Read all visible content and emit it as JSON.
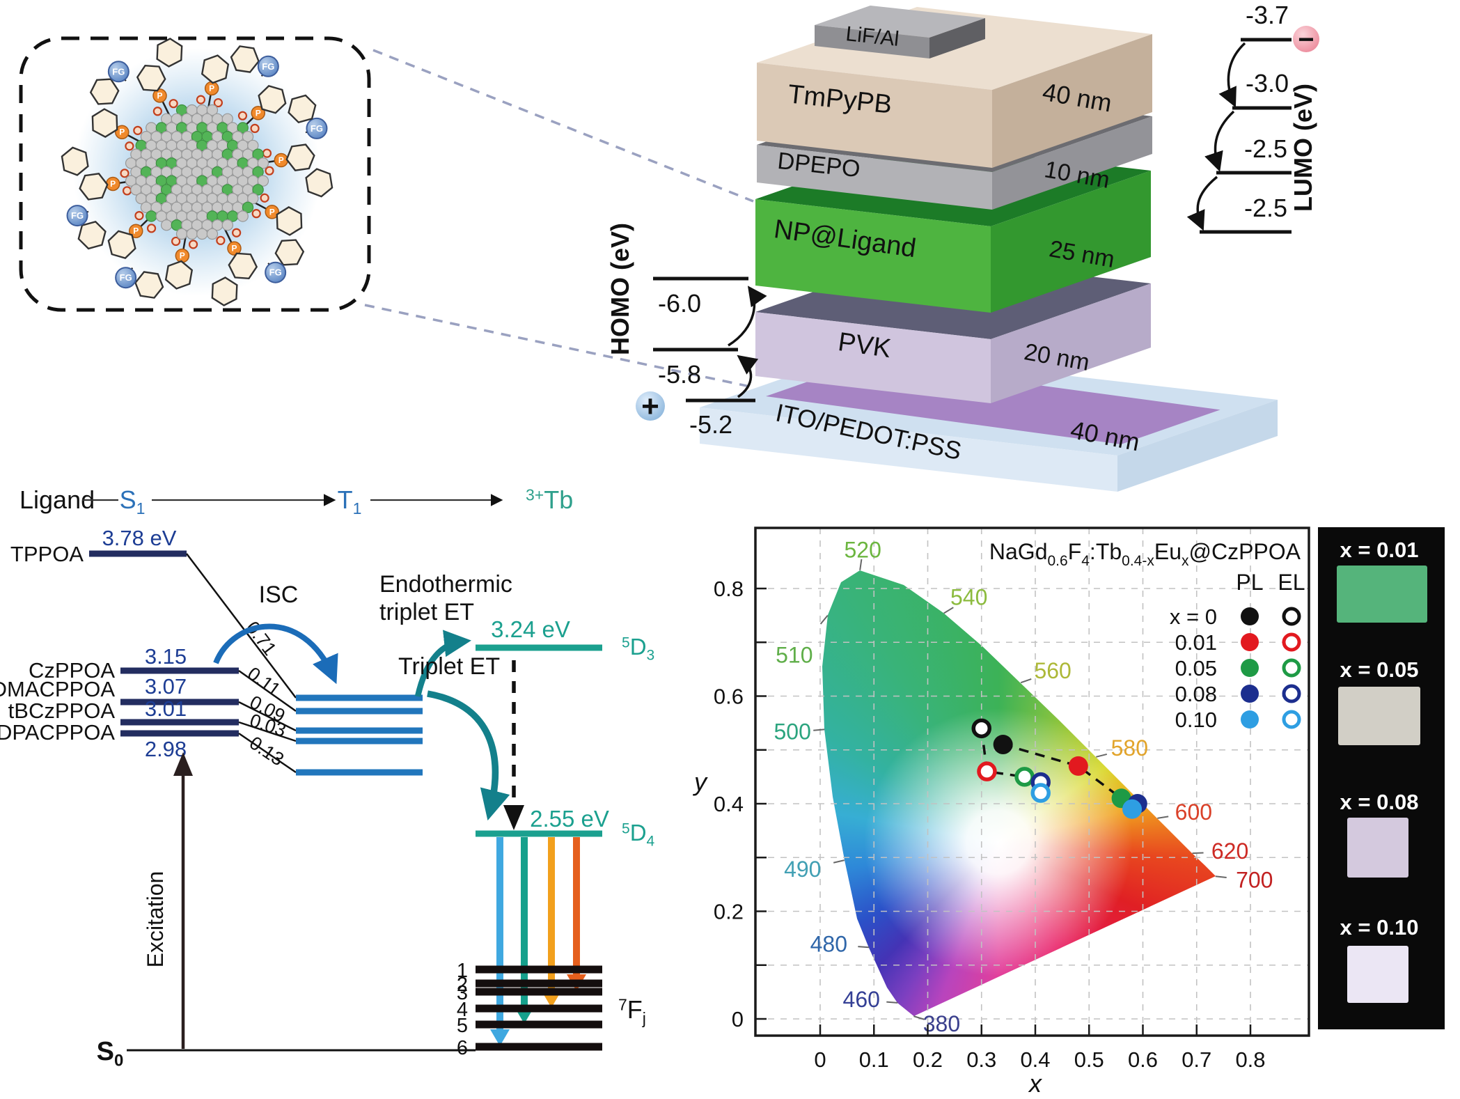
{
  "nanoparticle": {
    "functional_group_label": "FG"
  },
  "device": {
    "layers": [
      {
        "label": "LiF/Al",
        "thickness": ""
      },
      {
        "label": "TmPyPB",
        "thickness": "40 nm"
      },
      {
        "label": "DPEPO",
        "thickness": "10 nm"
      },
      {
        "label": "NP@Ligand",
        "thickness": "25 nm"
      },
      {
        "label": "PVK",
        "thickness": "20 nm"
      },
      {
        "label": "ITO/PEDOT:PSS",
        "thickness": "40 nm"
      }
    ],
    "homo": {
      "axis_label": "HOMO (eV)",
      "levels": [
        "-6.0",
        "-5.8",
        "-5.2"
      ],
      "carrier_symbol": "+"
    },
    "lumo": {
      "axis_label": "LUMO (eV)",
      "levels": [
        "-3.7",
        "-3.0",
        "-2.5",
        "-2.5"
      ],
      "carrier_symbol": "−"
    }
  },
  "energy_diagram": {
    "header": {
      "ligand": "Ligand",
      "s1": {
        "base": "S",
        "sub": "1"
      },
      "t1": {
        "base": "T",
        "sub": "1"
      },
      "acceptor": {
        "base": "Tb",
        "sup": "3+"
      }
    },
    "s1_levels": [
      {
        "name": "TPPOA",
        "energy": "3.78 eV"
      },
      {
        "name": "CzPPOA",
        "energy": "3.15"
      },
      {
        "name": "DMACPPOA",
        "energy": "3.07"
      },
      {
        "name": "tBCzPPOA",
        "energy": "3.01"
      },
      {
        "name": "DPACPPOA",
        "energy": "2.98"
      }
    ],
    "isc_yields": [
      "0.71",
      "0.11",
      "0.09",
      "0.03",
      "0.13"
    ],
    "labels": {
      "isc": "ISC",
      "endothermic_line1": "Endothermic",
      "endothermic_line2": "triplet ET",
      "triplet_et": "Triplet ET",
      "excitation": "Excitation"
    },
    "tb_levels": {
      "d3": {
        "energy": "3.24 eV",
        "term": {
          "sup": "5",
          "base": "D",
          "sub": "3"
        }
      },
      "d4": {
        "energy": "2.55 eV",
        "term": {
          "sup": "5",
          "base": "D",
          "sub": "4"
        }
      },
      "ground_term": {
        "sup": "7",
        "base": "F",
        "sub": "j"
      },
      "f_indices": [
        "1",
        "2",
        "3",
        "4",
        "5",
        "6"
      ],
      "s0": {
        "base": "S",
        "sub": "0"
      }
    }
  },
  "chart_data": {
    "type": "scatter",
    "title": "NaGd0.6F4:Tb0.4-xEux@CzPPOA",
    "title_segments": [
      {
        "t": "NaGd"
      },
      {
        "t": "0.6",
        "sub": true
      },
      {
        "t": "F"
      },
      {
        "t": "4",
        "sub": true
      },
      {
        "t": ":Tb"
      },
      {
        "t": "0.4-x",
        "sub": true
      },
      {
        "t": "Eu"
      },
      {
        "t": "x",
        "sub": true
      },
      {
        "t": "@CzPPOA"
      }
    ],
    "xlabel": "x",
    "ylabel": "y",
    "xlim": [
      0,
      0.8
    ],
    "ylim": [
      0,
      0.8
    ],
    "grid": true,
    "background": "CIE 1931 chromaticity gamut",
    "xticks": [
      "0",
      "0.1",
      "0.2",
      "0.3",
      "0.4",
      "0.5",
      "0.6",
      "0.7",
      "0.8"
    ],
    "yticks": [
      "0",
      "0.2",
      "0.4",
      "0.6",
      "0.8"
    ],
    "wavelength_labels": [
      {
        "nm": "380",
        "color": "#3a3f8d"
      },
      {
        "nm": "460",
        "color": "#343f95"
      },
      {
        "nm": "480",
        "color": "#2f66a9"
      },
      {
        "nm": "490",
        "color": "#42a0b4"
      },
      {
        "nm": "500",
        "color": "#2ba47e"
      },
      {
        "nm": "510",
        "color": "#5fae49"
      },
      {
        "nm": "520",
        "color": "#6cb640"
      },
      {
        "nm": "540",
        "color": "#8cbb3e"
      },
      {
        "nm": "560",
        "color": "#adb838"
      },
      {
        "nm": "580",
        "color": "#e2a42b"
      },
      {
        "nm": "600",
        "color": "#da4129"
      },
      {
        "nm": "620",
        "color": "#cd2a24"
      },
      {
        "nm": "700",
        "color": "#c22121"
      }
    ],
    "legend": {
      "series_headers": [
        "PL",
        "EL"
      ],
      "rows": [
        {
          "label": "x = 0",
          "color": "#111111"
        },
        {
          "label": "0.01",
          "color": "#e2191f"
        },
        {
          "label": "0.05",
          "color": "#1e9a45"
        },
        {
          "label": "0.08",
          "color": "#1c2e8e"
        },
        {
          "label": "0.10",
          "color": "#2e9ee2"
        }
      ]
    },
    "series": [
      {
        "name": "PL",
        "marker": "filled",
        "points": [
          [
            0.34,
            0.51
          ],
          [
            0.48,
            0.47
          ],
          [
            0.56,
            0.41
          ],
          [
            0.59,
            0.4
          ],
          [
            0.58,
            0.39
          ]
        ]
      },
      {
        "name": "EL",
        "marker": "open",
        "points": [
          [
            0.3,
            0.54
          ],
          [
            0.31,
            0.46
          ],
          [
            0.38,
            0.45
          ],
          [
            0.41,
            0.44
          ],
          [
            0.41,
            0.42
          ]
        ]
      }
    ]
  },
  "photos": [
    {
      "label": "x = 0.01",
      "color": "#55b47b"
    },
    {
      "label": "x = 0.05",
      "color": "#d2cfc6"
    },
    {
      "label": "x = 0.08",
      "color": "#d4c9de"
    },
    {
      "label": "x = 0.10",
      "color": "#ebe6f4"
    }
  ]
}
